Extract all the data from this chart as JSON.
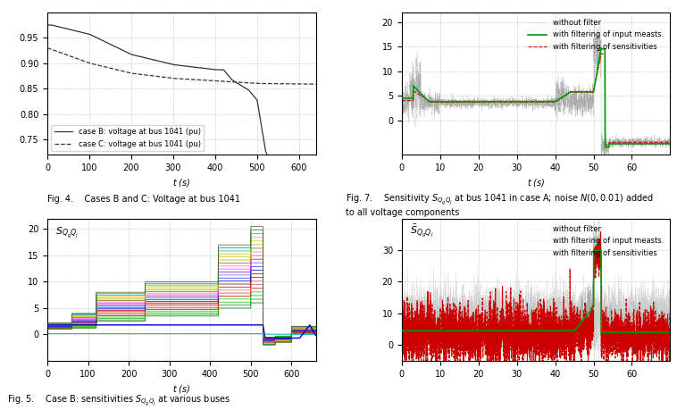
{
  "fig_caption": "Fig. 5.   Case B: sensitivities $S_{Q_g Q_j}$ at various buses",
  "background": "#ffffff",
  "subplot_bottom_left": {
    "ylabel": "$S_{Q_g Q_j}$",
    "xlabel": "t (s)",
    "xlim": [
      0,
      660
    ],
    "ylim": [
      -5,
      22
    ],
    "yticks": [
      0,
      5,
      10,
      15,
      20
    ],
    "xticks": [
      0,
      100,
      200,
      300,
      400,
      500,
      600
    ],
    "n_series": 22,
    "t_events": [
      0,
      60,
      120,
      240,
      420,
      500,
      530,
      560,
      600,
      640,
      660
    ],
    "colors": [
      "#007700",
      "#009900",
      "#00bb00",
      "#00dd00",
      "#cc0000",
      "#dd3333",
      "#ee6666",
      "#aa0000",
      "#880000",
      "#0000cc",
      "#2222ee",
      "#4466ff",
      "#aa00aa",
      "#cc44cc",
      "#ff66ff",
      "#886600",
      "#aaaa00",
      "#cccc00",
      "#ddbb00",
      "#00aaaa",
      "#008888",
      "#555500"
    ]
  },
  "subplot_top_left": {
    "ylabel": "",
    "xlabel": "t (s)",
    "xlim": [
      0,
      640
    ],
    "ylim": [
      0.72,
      1.0
    ],
    "yticks": [
      0.75,
      0.8,
      0.85,
      0.9,
      0.95
    ],
    "xticks": [
      0,
      100,
      200,
      300,
      400,
      500,
      600
    ]
  },
  "subplot_top_right": {
    "ylabel": "$S_{Q_g Q_j}$",
    "xlabel": "t (s)",
    "xlim": [
      0,
      70
    ],
    "ylim": [
      -7,
      22
    ],
    "yticks": [
      0,
      5,
      10,
      15,
      20
    ],
    "xticks": [
      0,
      10,
      20,
      30,
      40,
      50,
      60
    ]
  },
  "subplot_bottom_right": {
    "ylabel": "$\\bar{S}_{Q_g Q_j}$",
    "xlabel": "t (s)",
    "xlim": [
      0,
      70
    ],
    "ylim": [
      -5,
      40
    ],
    "yticks": [
      0,
      10,
      20,
      30
    ],
    "xticks": [
      0,
      10,
      20,
      30,
      40,
      50,
      60
    ]
  }
}
